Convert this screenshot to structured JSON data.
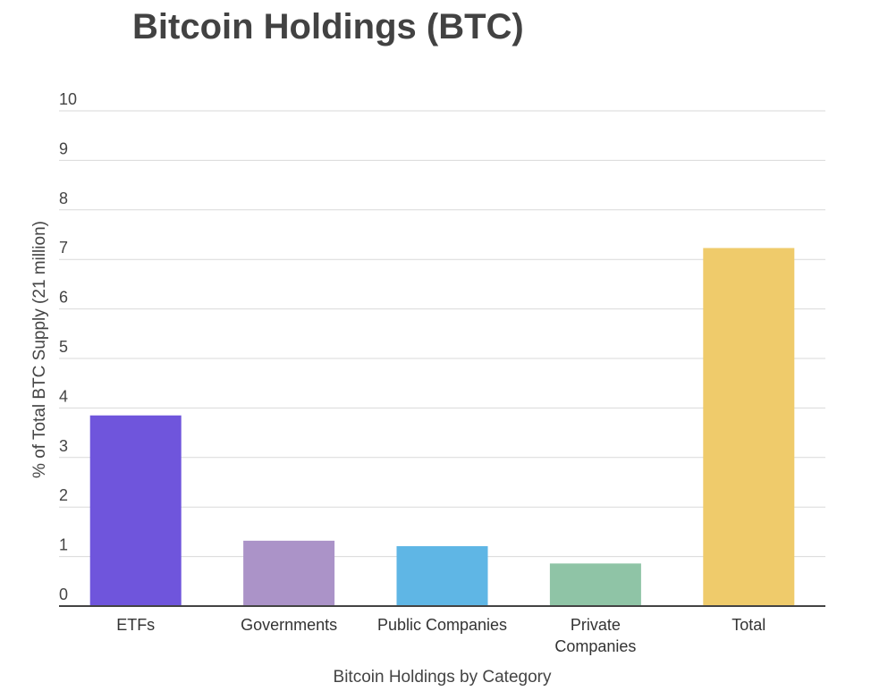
{
  "chart_data": {
    "type": "bar",
    "title": "Bitcoin Holdings (BTC)",
    "xlabel": "Bitcoin Holdings by Category",
    "ylabel": "% of Total BTC Supply (21 million)",
    "ylim": [
      0,
      10
    ],
    "yticks": [
      "0",
      "1",
      "2",
      "3",
      "4",
      "5",
      "6",
      "7",
      "8",
      "9",
      "10"
    ],
    "categories": [
      [
        "ETFs"
      ],
      [
        "Governments"
      ],
      [
        "Public Companies"
      ],
      [
        "Private",
        "Companies"
      ],
      [
        "Total"
      ]
    ],
    "values": [
      3.85,
      1.32,
      1.21,
      0.86,
      7.23
    ],
    "colors": [
      "#6f55dc",
      "#ab93c8",
      "#5fb6e5",
      "#8fc4a6",
      "#efcb6b"
    ],
    "grid": true
  }
}
